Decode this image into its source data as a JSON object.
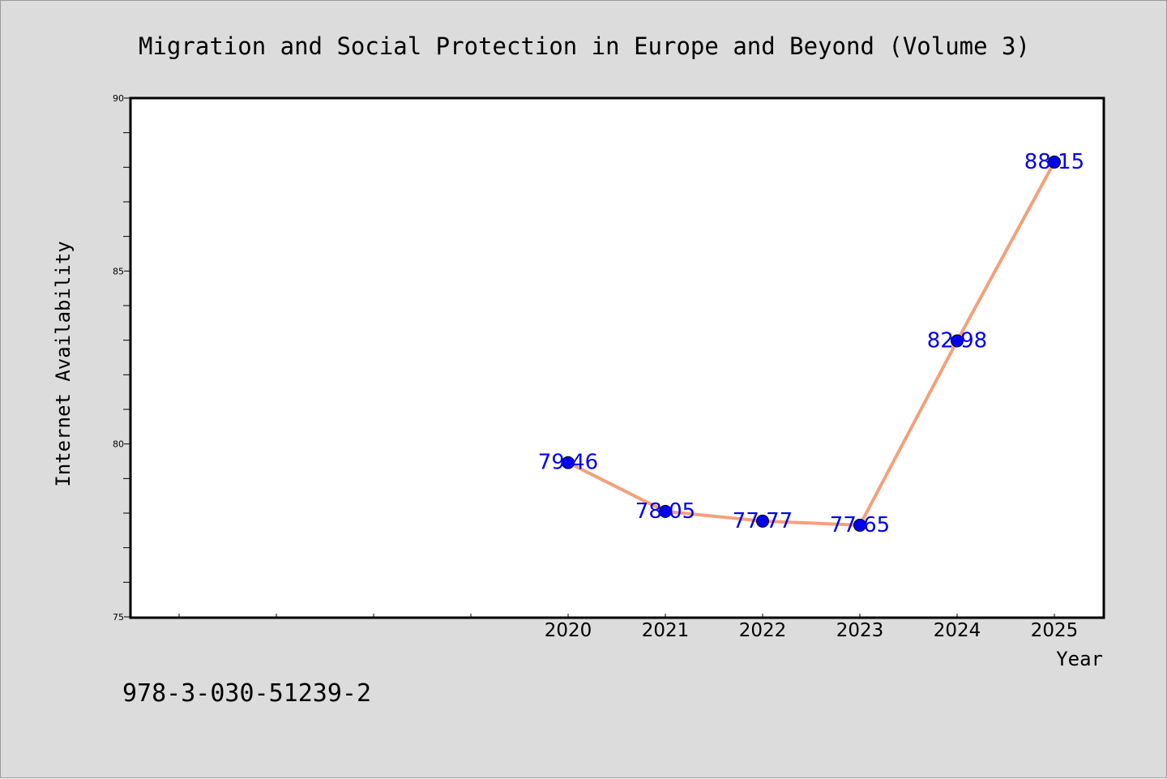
{
  "chart_data": {
    "type": "line",
    "title": "Migration and Social Protection in Europe and Beyond (Volume 3)",
    "xlabel": "Year",
    "ylabel": "Internet Availability",
    "categories": [
      "2020",
      "2021",
      "2022",
      "2023",
      "2024",
      "2025"
    ],
    "series": [
      {
        "values": [
          79.46,
          78.05,
          77.77,
          77.65,
          82.98,
          88.15
        ]
      }
    ],
    "data_labels": [
      "79.46",
      "78.05",
      "77.77",
      "77.65",
      "82.98",
      "88.15"
    ],
    "ylim": [
      75,
      90
    ],
    "yticks": [
      "75",
      "80",
      "85",
      "90"
    ],
    "grid": false,
    "legend": "none",
    "colors": {
      "line": "#f4a07a",
      "marker": "#0000ee",
      "label": "#0000ee",
      "background": "#dcdcdc",
      "plot_background": "#ffffff"
    }
  },
  "footer": {
    "isbn": "978-3-030-51239-2"
  }
}
